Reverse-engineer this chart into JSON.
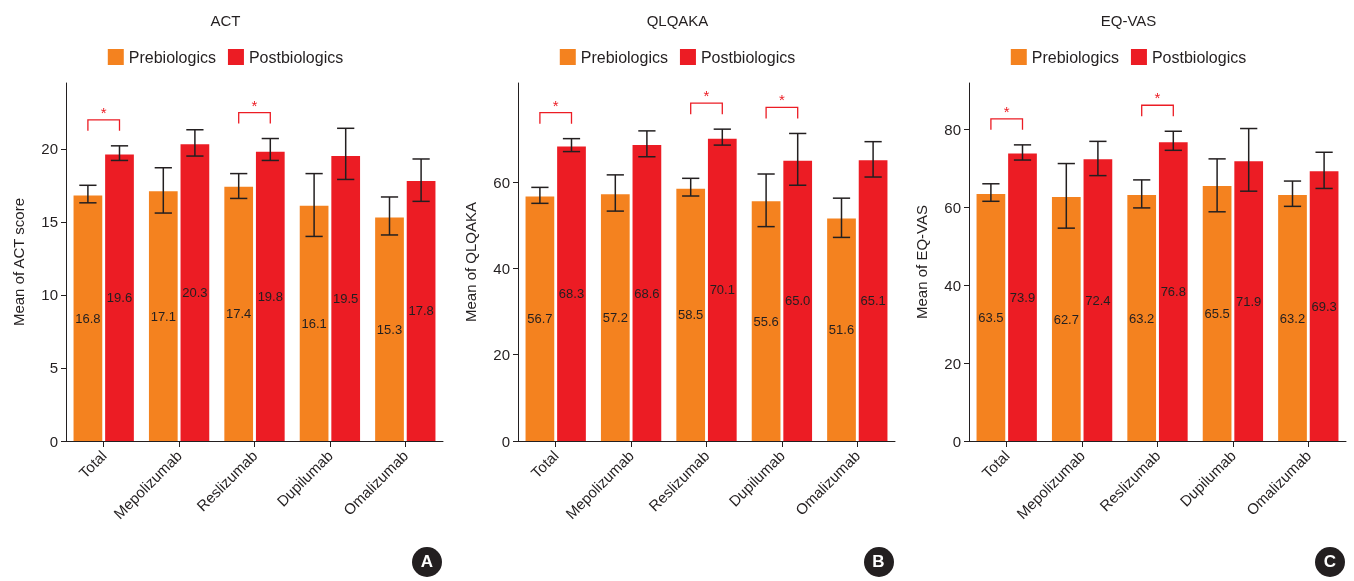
{
  "chart_data": [
    {
      "type": "bar",
      "title": "ACT",
      "ylabel": "Mean of ACT score",
      "categories": [
        "Total",
        "Mepolizumab",
        "Reslizumab",
        "Dupilumab",
        "Omalizumab"
      ],
      "series": [
        {
          "name": "Prebiologics",
          "color": "#f4821f",
          "values": [
            16.8,
            17.1,
            17.4,
            16.1,
            15.3
          ],
          "value_labels": [
            "16.8",
            "17.1",
            "17.4",
            "16.1",
            "15.3"
          ],
          "errors": [
            [
              16.3,
              17.5
            ],
            [
              15.6,
              18.7
            ],
            [
              16.6,
              18.3
            ],
            [
              14.0,
              18.3
            ],
            [
              14.1,
              16.7
            ]
          ]
        },
        {
          "name": "Postbiologics",
          "color": "#ec1c24",
          "values": [
            19.6,
            20.3,
            19.8,
            19.5,
            17.8
          ],
          "value_labels": [
            "19.6",
            "20.3",
            "19.8",
            "19.5",
            "17.8"
          ],
          "errors": [
            [
              19.2,
              20.2
            ],
            [
              19.5,
              21.3
            ],
            [
              19.2,
              20.7
            ],
            [
              17.9,
              21.4
            ],
            [
              16.4,
              19.3
            ]
          ]
        }
      ],
      "ylim": [
        0,
        24.5
      ],
      "yticks": [
        0,
        5,
        10,
        15,
        20
      ],
      "legend": "top",
      "grid": false,
      "annotations": [
        "*",
        "*",
        "A"
      ]
    },
    {
      "type": "bar",
      "title": "QLQAKA",
      "ylabel": "Mean of QLQAKA",
      "categories": [
        "Total",
        "Mepolizumab",
        "Reslizumab",
        "Dupilumab",
        "Omalizumab"
      ],
      "series": [
        {
          "name": "Prebiologics",
          "color": "#f4821f",
          "values": [
            56.7,
            57.2,
            58.5,
            55.6,
            51.6
          ],
          "value_labels": [
            "56.7",
            "57.2",
            "58.5",
            "55.6",
            "51.6"
          ],
          "errors": [
            [
              55.1,
              58.8
            ],
            [
              53.3,
              61.7
            ],
            [
              56.8,
              60.9
            ],
            [
              49.7,
              61.9
            ],
            [
              47.2,
              56.3
            ]
          ]
        },
        {
          "name": "Postbiologics",
          "color": "#ec1c24",
          "values": [
            68.3,
            68.6,
            70.1,
            65.0,
            65.1
          ],
          "value_labels": [
            "68.3",
            "68.6",
            "70.1",
            "65.0",
            "65.1"
          ],
          "errors": [
            [
              67.1,
              70.1
            ],
            [
              65.9,
              71.9
            ],
            [
              68.6,
              72.3
            ],
            [
              59.3,
              71.3
            ],
            [
              61.2,
              69.4
            ]
          ]
        }
      ],
      "ylim": [
        0,
        83
      ],
      "yticks": [
        0,
        20,
        40,
        60
      ],
      "legend": "top",
      "grid": false,
      "annotations": [
        "*",
        "*",
        "*",
        "B"
      ]
    },
    {
      "type": "bar",
      "title": "EQ-VAS",
      "ylabel": "Mean of EQ-VAS",
      "categories": [
        "Total",
        "Mepolizumab",
        "Reslizumab",
        "Dupilumab",
        "Omalizumab"
      ],
      "series": [
        {
          "name": "Prebiologics",
          "color": "#f4821f",
          "values": [
            63.5,
            62.7,
            63.2,
            65.5,
            63.2
          ],
          "value_labels": [
            "63.5",
            "62.7",
            "63.2",
            "65.5",
            "63.2"
          ],
          "errors": [
            [
              61.6,
              66.1
            ],
            [
              54.7,
              71.3
            ],
            [
              59.9,
              67.1
            ],
            [
              58.9,
              72.5
            ],
            [
              60.3,
              66.8
            ]
          ]
        },
        {
          "name": "Postbiologics",
          "color": "#ec1c24",
          "values": [
            73.9,
            72.4,
            76.8,
            71.9,
            69.3
          ],
          "value_labels": [
            "73.9",
            "72.4",
            "76.8",
            "71.9",
            "69.3"
          ],
          "errors": [
            [
              72.2,
              76.1
            ],
            [
              68.2,
              77.0
            ],
            [
              74.7,
              79.6
            ],
            [
              64.2,
              80.3
            ],
            [
              64.9,
              74.2
            ]
          ]
        }
      ],
      "ylim": [
        0,
        92
      ],
      "yticks": [
        0,
        20,
        40,
        60,
        80
      ],
      "legend": "top",
      "grid": false,
      "annotations": [
        "*",
        "*",
        "C"
      ]
    }
  ]
}
